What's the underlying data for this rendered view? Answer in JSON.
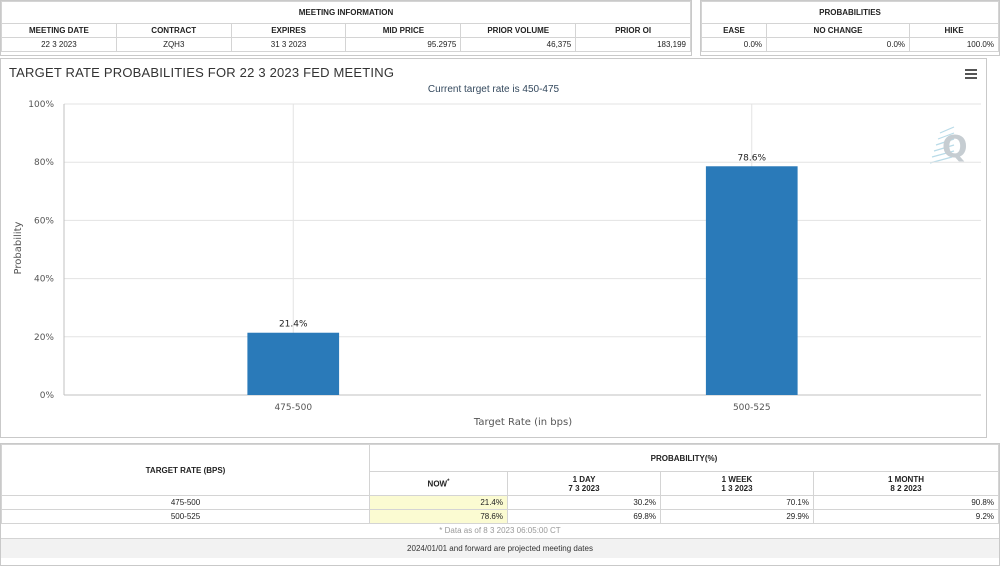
{
  "meeting_info": {
    "title": "MEETING INFORMATION",
    "headers": [
      "MEETING DATE",
      "CONTRACT",
      "EXPIRES",
      "MID PRICE",
      "PRIOR VOLUME",
      "PRIOR OI"
    ],
    "row": [
      "22 3 2023",
      "ZQH3",
      "31 3 2023",
      "95.2975",
      "46,375",
      "183,199"
    ]
  },
  "probabilities": {
    "title": "PROBABILITIES",
    "headers": [
      "EASE",
      "NO CHANGE",
      "HIKE"
    ],
    "row": [
      "0.0%",
      "0.0%",
      "100.0%"
    ]
  },
  "chart": {
    "menu_icon": "hamburger-menu-icon",
    "logo": "Q",
    "bar_color": "#2a7ab9"
  },
  "chart_data": {
    "type": "bar",
    "title": "TARGET RATE PROBABILITIES FOR 22 3 2023 FED MEETING",
    "subtitle": "Current target rate is 450-475",
    "xlabel": "Target Rate (in bps)",
    "ylabel": "Probability",
    "categories": [
      "475-500",
      "500-525"
    ],
    "values": [
      21.4,
      78.6
    ],
    "data_labels": [
      "21.4%",
      "78.6%"
    ],
    "ylim": [
      0,
      100
    ],
    "yticks": [
      0,
      20,
      40,
      60,
      80,
      100
    ],
    "ytick_labels": [
      "0%",
      "20%",
      "40%",
      "60%",
      "80%",
      "100%"
    ],
    "grid": true,
    "legend": "none"
  },
  "history": {
    "rate_header": "TARGET RATE (BPS)",
    "prob_header": "PROBABILITY(%)",
    "columns": [
      {
        "label": "NOW",
        "sup": "*",
        "date": ""
      },
      {
        "label": "1 DAY",
        "sup": "",
        "date": "7 3 2023"
      },
      {
        "label": "1 WEEK",
        "sup": "",
        "date": "1 3 2023"
      },
      {
        "label": "1 MONTH",
        "sup": "",
        "date": "8 2 2023"
      }
    ],
    "rows": [
      {
        "rate": "475-500",
        "values": [
          "21.4%",
          "30.2%",
          "70.1%",
          "90.8%"
        ]
      },
      {
        "rate": "500-525",
        "values": [
          "78.6%",
          "69.8%",
          "29.9%",
          "9.2%"
        ]
      }
    ],
    "note": "* Data as of 8 3 2023 06:05:00 CT",
    "footer": "2024/01/01 and forward are projected meeting dates"
  }
}
